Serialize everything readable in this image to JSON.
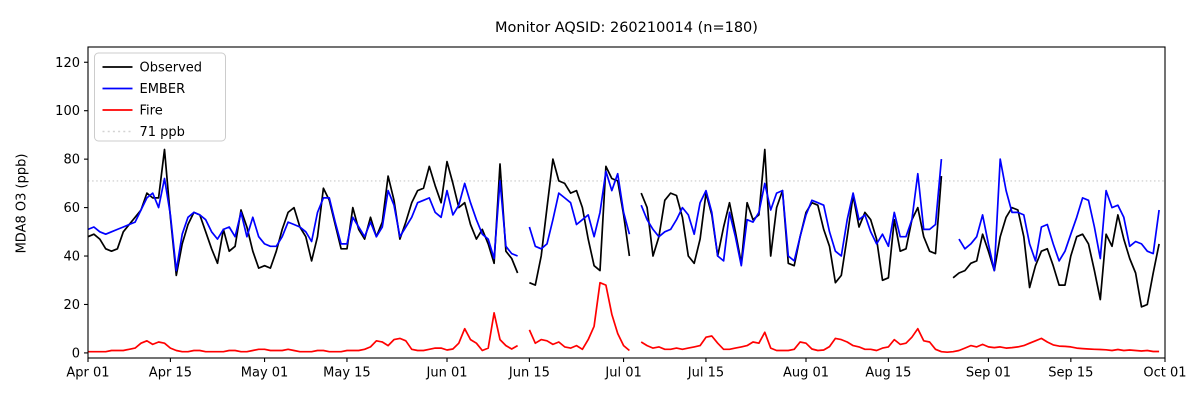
{
  "title": "Monitor AQSID: 260210014 (n=180)",
  "ylabel": "MDA8 O3 (ppb)",
  "legend": {
    "entries": [
      "Observed",
      "EMBER",
      "Fire",
      "71 ppb"
    ],
    "colors": [
      "#000000",
      "#0000ff",
      "#ff0000",
      "#d3d3d3"
    ],
    "styles": [
      "solid",
      "solid",
      "solid",
      "dotted"
    ]
  },
  "chart_data": {
    "type": "line",
    "title": "Monitor AQSID: 260210014 (n=180)",
    "xlabel": "",
    "ylabel": "MDA8 O3 (ppb)",
    "grid": false,
    "legend_position": "upper left",
    "x_unit": "days since Apr 01",
    "x_start_label": "Apr 01",
    "n_points_per_series": 183,
    "ylim": [
      -2.1,
      126.3
    ],
    "yticks": [
      0,
      20,
      40,
      60,
      80,
      100,
      120
    ],
    "xticks": [
      {
        "label": "Apr 01",
        "day": 0
      },
      {
        "label": "Apr 15",
        "day": 14
      },
      {
        "label": "May 01",
        "day": 30
      },
      {
        "label": "May 15",
        "day": 44
      },
      {
        "label": "Jun 01",
        "day": 61
      },
      {
        "label": "Jun 15",
        "day": 75
      },
      {
        "label": "Jul 01",
        "day": 91
      },
      {
        "label": "Jul 15",
        "day": 105
      },
      {
        "label": "Aug 01",
        "day": 122
      },
      {
        "label": "Aug 15",
        "day": 136
      },
      {
        "label": "Sep 01",
        "day": 153
      },
      {
        "label": "Sep 15",
        "day": 167
      },
      {
        "label": "Oct 01",
        "day": 183
      }
    ],
    "threshold": {
      "label": "71 ppb",
      "value": 71,
      "color": "#d3d3d3",
      "style": "dotted"
    },
    "series": [
      {
        "name": "Observed",
        "color": "#000000",
        "values": [
          48,
          49,
          47,
          43,
          42,
          43,
          50,
          53,
          56,
          59,
          66,
          64,
          64,
          84,
          56,
          32,
          45,
          53,
          58,
          57,
          50,
          43,
          37,
          51,
          42,
          44,
          59,
          52,
          42,
          35,
          36,
          35,
          42,
          51,
          58,
          60,
          52,
          48,
          38,
          48,
          68,
          63,
          53,
          43,
          43,
          60,
          51,
          47,
          56,
          48,
          54,
          73,
          63,
          47,
          54,
          62,
          67,
          68,
          77,
          69,
          62,
          79,
          70,
          60,
          62,
          53,
          47,
          51,
          45,
          37,
          78,
          42,
          39,
          33,
          null,
          29,
          28,
          40,
          60,
          80,
          71,
          70,
          66,
          67,
          60,
          47,
          36,
          34,
          77,
          72,
          71,
          57,
          40,
          null,
          66,
          60,
          40,
          48,
          63,
          66,
          65,
          56,
          40,
          37,
          47,
          66,
          57,
          40,
          52,
          62,
          50,
          37,
          62,
          55,
          57,
          84,
          40,
          60,
          67,
          37,
          36,
          48,
          58,
          62,
          61,
          51,
          44,
          29,
          32,
          48,
          65,
          52,
          58,
          55,
          47,
          30,
          31,
          55,
          42,
          43,
          55,
          60,
          48,
          42,
          41,
          73,
          null,
          31,
          33,
          34,
          37,
          38,
          49,
          42,
          34,
          48,
          56,
          60,
          59,
          48,
          27,
          36,
          42,
          43,
          36,
          28,
          28,
          40,
          48,
          49,
          45,
          34,
          22,
          49,
          44,
          57,
          47,
          39,
          33,
          19,
          20,
          33,
          45
        ]
      },
      {
        "name": "EMBER",
        "color": "#0000ff",
        "values": [
          51,
          52,
          50,
          49,
          50,
          51,
          52,
          53,
          54,
          59,
          64,
          66,
          60,
          72,
          57,
          34,
          49,
          56,
          58,
          57,
          55,
          50,
          47,
          51,
          52,
          48,
          58,
          48,
          56,
          48,
          45,
          44,
          44,
          48,
          54,
          53,
          52,
          50,
          46,
          58,
          64,
          64,
          54,
          45,
          45,
          56,
          52,
          48,
          54,
          48,
          52,
          67,
          61,
          48,
          52,
          56,
          62,
          63,
          64,
          58,
          56,
          67,
          57,
          61,
          70,
          62,
          55,
          49,
          47,
          39,
          71,
          44,
          41,
          40,
          null,
          52,
          44,
          43,
          45,
          55,
          66,
          64,
          62,
          53,
          55,
          57,
          48,
          58,
          75,
          67,
          74,
          58,
          49,
          null,
          61,
          55,
          51,
          48,
          50,
          51,
          55,
          60,
          57,
          49,
          62,
          67,
          58,
          40,
          38,
          58,
          48,
          36,
          55,
          54,
          58,
          70,
          59,
          66,
          67,
          40,
          38,
          48,
          57,
          63,
          62,
          61,
          50,
          42,
          40,
          55,
          66,
          55,
          57,
          50,
          45,
          49,
          44,
          58,
          48,
          48,
          55,
          74,
          51,
          51,
          53,
          80,
          null,
          null,
          47,
          43,
          45,
          48,
          57,
          45,
          34,
          80,
          67,
          58,
          58,
          57,
          45,
          38,
          52,
          53,
          45,
          38,
          42,
          49,
          56,
          64,
          63,
          52,
          39,
          67,
          60,
          61,
          56,
          44,
          46,
          45,
          42,
          41,
          59
        ]
      },
      {
        "name": "Fire",
        "color": "#ff0000",
        "values": [
          0.5,
          0.5,
          0.5,
          0.5,
          1,
          1,
          1,
          1.5,
          2,
          4,
          5,
          3.5,
          4.5,
          4,
          2,
          1,
          0.5,
          0.5,
          1,
          1,
          0.5,
          0.5,
          0.5,
          0.5,
          1,
          1,
          0.5,
          0.5,
          1,
          1.5,
          1.5,
          1,
          1,
          1,
          1.5,
          1,
          0.5,
          0.5,
          0.5,
          1,
          1,
          0.5,
          0.5,
          0.5,
          1,
          1,
          1,
          1.5,
          2.5,
          5,
          4.5,
          3,
          5.5,
          6,
          5,
          1.5,
          1,
          1,
          1.5,
          2,
          2,
          1.2,
          1.6,
          4,
          10,
          5.5,
          4,
          1,
          2,
          16.5,
          5.5,
          3,
          1.6,
          3,
          null,
          9.5,
          4,
          5.5,
          5,
          3.5,
          4.5,
          2.5,
          2,
          3,
          1.5,
          5.5,
          11,
          29,
          28,
          16,
          8,
          3,
          1,
          null,
          4.5,
          3,
          2,
          2.5,
          1.5,
          1.5,
          2,
          1.5,
          2,
          2.5,
          3,
          6.5,
          7,
          4,
          1.5,
          1.5,
          2,
          2.5,
          3,
          4.5,
          4,
          8.5,
          2,
          1,
          1,
          1,
          1.5,
          4.5,
          4,
          1.6,
          1,
          1.2,
          2.6,
          6,
          5.5,
          4.5,
          3,
          2.5,
          1.5,
          1.5,
          1,
          2,
          2.5,
          5.5,
          3.5,
          4,
          6.5,
          10,
          5,
          4.5,
          1.5,
          0.5,
          0.3,
          0.5,
          1,
          2,
          3,
          2.5,
          3.5,
          2.5,
          2.2,
          2.5,
          2,
          2.2,
          2.5,
          3,
          4,
          5,
          6,
          4.5,
          3.3,
          2.8,
          2.7,
          2.5,
          2,
          1.8,
          1.6,
          1.5,
          1.4,
          1.3,
          1,
          1.4,
          1,
          1.2,
          1,
          0.8,
          1,
          0.6,
          0.6
        ]
      }
    ]
  }
}
